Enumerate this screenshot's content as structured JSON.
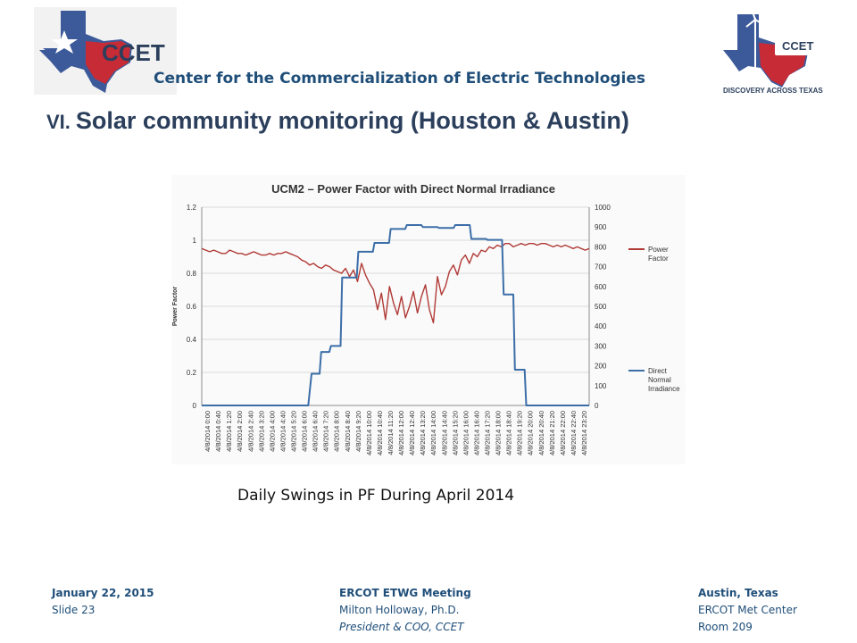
{
  "header": {
    "logo_left_text": "CCET",
    "logo_right_text": "CCET",
    "logo_right_tagline": "DISCOVERY ACROSS TEXAS",
    "org_name": "Center for the Commercialization of Electric Technologies"
  },
  "slide": {
    "title_number": "VI.",
    "title_text": "Solar community monitoring (Houston & Austin)",
    "caption": "Daily Swings in PF During April 2014"
  },
  "footer": {
    "left": {
      "date": "January 22, 2015",
      "slide": "Slide 23"
    },
    "center": {
      "meeting": "ERCOT ETWG Meeting",
      "presenter": "Milton Holloway, Ph.D.",
      "role": "President & COO, CCET"
    },
    "right": {
      "city": "Austin, Texas",
      "venue": "ERCOT Met Center",
      "room": "Room 209"
    }
  },
  "colors": {
    "power_factor": "#b03a36",
    "irradiance": "#3c6ea8",
    "title": "#2b3f5c",
    "footer": "#1f4e79"
  },
  "chart_data": {
    "type": "line",
    "title": "UCM2 – Power Factor with Direct Normal Irradiance",
    "ylabel": "Power Factor",
    "ylim": [
      0,
      1.2
    ],
    "y2lim": [
      0,
      1000
    ],
    "y_ticks": [
      "0",
      "0.2",
      "0.4",
      "0.6",
      "0.8",
      "1",
      "1.2"
    ],
    "y2_ticks": [
      "0",
      "100",
      "200",
      "300",
      "400",
      "500",
      "600",
      "700",
      "800",
      "900",
      "1000"
    ],
    "grid": true,
    "legend_position": "right",
    "x_tick_labels": [
      "4/8/2014 0:00",
      "4/8/2014 0:40",
      "4/8/2014 1:20",
      "4/8/2014 2:00",
      "4/8/2014 2:40",
      "4/8/2014 3:20",
      "4/8/2014 4:00",
      "4/8/2014 4:40",
      "4/8/2014 5:20",
      "4/8/2014 6:00",
      "4/8/2014 6:40",
      "4/8/2014 7:20",
      "4/8/2014 8:00",
      "4/8/2014 8:40",
      "4/8/2014 9:20",
      "4/8/2014 10:00",
      "4/8/2014 10:40",
      "4/8/2014 11:20",
      "4/8/2014 12:00",
      "4/8/2014 12:40",
      "4/8/2014 13:20",
      "4/8/2014 14:00",
      "4/8/2014 14:40",
      "4/8/2014 15:20",
      "4/8/2014 16:00",
      "4/8/2014 16:40",
      "4/8/2014 17:20",
      "4/8/2014 18:00",
      "4/8/2014 18:40",
      "4/8/2014 19:20",
      "4/8/2014 20:00",
      "4/8/2014 20:40",
      "4/8/2014 21:20",
      "4/8/2014 22:00",
      "4/8/2014 22:40",
      "4/8/2014 23:20"
    ],
    "series": [
      {
        "name": "Power Factor",
        "axis": "left",
        "values": [
          0.95,
          0.94,
          0.93,
          0.94,
          0.93,
          0.92,
          0.92,
          0.94,
          0.93,
          0.92,
          0.92,
          0.91,
          0.92,
          0.93,
          0.92,
          0.91,
          0.91,
          0.92,
          0.91,
          0.92,
          0.92,
          0.93,
          0.92,
          0.91,
          0.9,
          0.88,
          0.87,
          0.85,
          0.86,
          0.84,
          0.83,
          0.85,
          0.84,
          0.82,
          0.81,
          0.8,
          0.83,
          0.78,
          0.82,
          0.75,
          0.86,
          0.79,
          0.74,
          0.7,
          0.58,
          0.68,
          0.52,
          0.72,
          0.62,
          0.55,
          0.66,
          0.53,
          0.6,
          0.69,
          0.56,
          0.66,
          0.73,
          0.58,
          0.5,
          0.78,
          0.67,
          0.72,
          0.81,
          0.85,
          0.79,
          0.88,
          0.91,
          0.86,
          0.92,
          0.9,
          0.94,
          0.93,
          0.96,
          0.95,
          0.97,
          0.96,
          0.98,
          0.98,
          0.96,
          0.97,
          0.98,
          0.97,
          0.98,
          0.98,
          0.97,
          0.98,
          0.98,
          0.97,
          0.96,
          0.97,
          0.96,
          0.97,
          0.96,
          0.95,
          0.96,
          0.95,
          0.94,
          0.95
        ]
      },
      {
        "name": "Direct Normal Irradiance",
        "axis": "right",
        "x": [
          0,
          6.6,
          6.8,
          7.3,
          7.4,
          7.9,
          8.0,
          8.6,
          8.7,
          9.6,
          9.7,
          10.6,
          10.7,
          11.6,
          11.7,
          12.6,
          12.7,
          13.6,
          13.7,
          14.6,
          14.7,
          15.6,
          15.7,
          16.6,
          16.7,
          17.6,
          17.7,
          18.6,
          18.7,
          19.3,
          19.4,
          20.0,
          20.1,
          24.0
        ],
        "values": [
          0,
          0,
          160,
          160,
          270,
          270,
          300,
          300,
          645,
          645,
          775,
          775,
          820,
          820,
          890,
          890,
          910,
          910,
          900,
          900,
          895,
          895,
          910,
          910,
          840,
          840,
          835,
          835,
          560,
          560,
          180,
          180,
          0,
          0
        ]
      }
    ]
  }
}
